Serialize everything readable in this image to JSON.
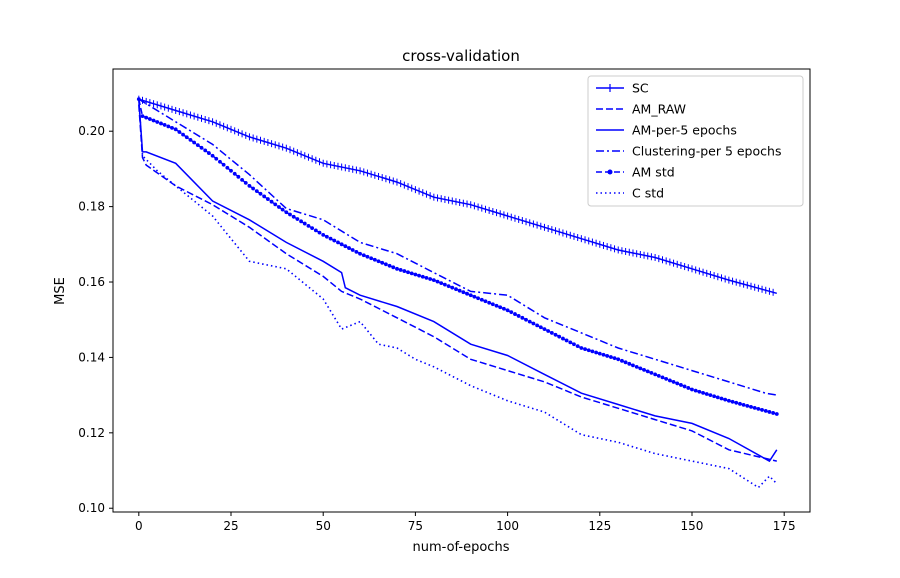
{
  "chart_data": {
    "type": "line",
    "title": "cross-validation",
    "xlabel": "num-of-epochs",
    "ylabel": "MSE",
    "xlim": [
      -7,
      182
    ],
    "ylim": [
      0.099,
      0.2165
    ],
    "xticks": [
      0,
      25,
      50,
      75,
      100,
      125,
      150,
      175
    ],
    "yticks": [
      0.1,
      0.12,
      0.14,
      0.16,
      0.18,
      0.2
    ],
    "xtick_labels": [
      "0",
      "25",
      "50",
      "75",
      "100",
      "125",
      "150",
      "175"
    ],
    "ytick_labels": [
      "0.10",
      "0.12",
      "0.14",
      "0.16",
      "0.18",
      "0.20"
    ],
    "grid": false,
    "legend_position": "top-right",
    "line_color": "#0000ff",
    "series": [
      {
        "name": "SC",
        "style": "solid-plus",
        "x": [
          0,
          10,
          20,
          30,
          40,
          50,
          60,
          70,
          80,
          90,
          100,
          110,
          120,
          130,
          140,
          150,
          160,
          173
        ],
        "y": [
          0.2085,
          0.2055,
          0.2025,
          0.1985,
          0.1955,
          0.1915,
          0.1895,
          0.1865,
          0.1825,
          0.1805,
          0.1775,
          0.1745,
          0.1715,
          0.1685,
          0.1665,
          0.1635,
          0.1605,
          0.157
        ]
      },
      {
        "name": "AM_RAW",
        "style": "dashed",
        "x": [
          0,
          1,
          2,
          10,
          20,
          30,
          40,
          50,
          55,
          60,
          70,
          80,
          90,
          100,
          110,
          120,
          130,
          140,
          150,
          160,
          173
        ],
        "y": [
          0.207,
          0.193,
          0.191,
          0.1855,
          0.1805,
          0.1745,
          0.1675,
          0.1615,
          0.1575,
          0.1555,
          0.1505,
          0.1455,
          0.1395,
          0.1365,
          0.1335,
          0.1295,
          0.1265,
          0.1235,
          0.1205,
          0.1155,
          0.1125
        ]
      },
      {
        "name": "AM-per-5 epochs",
        "style": "solid",
        "x": [
          0,
          1,
          2,
          10,
          20,
          30,
          40,
          50,
          55,
          56,
          60,
          70,
          80,
          90,
          100,
          110,
          120,
          130,
          140,
          150,
          160,
          171,
          173
        ],
        "y": [
          0.2085,
          0.1945,
          0.1945,
          0.1915,
          0.1815,
          0.1765,
          0.1705,
          0.1655,
          0.1625,
          0.1585,
          0.1565,
          0.1535,
          0.1495,
          0.1435,
          0.1405,
          0.1355,
          0.1305,
          0.1275,
          0.1245,
          0.1225,
          0.1185,
          0.1125,
          0.1155
        ]
      },
      {
        "name": "Clustering-per 5 epochs",
        "style": "dashdot",
        "x": [
          0,
          10,
          20,
          30,
          40,
          50,
          60,
          70,
          80,
          90,
          100,
          110,
          120,
          130,
          140,
          150,
          160,
          170,
          173
        ],
        "y": [
          0.2085,
          0.2025,
          0.1965,
          0.1885,
          0.1795,
          0.1765,
          0.1705,
          0.1675,
          0.1625,
          0.1575,
          0.1565,
          0.1505,
          0.1465,
          0.1425,
          0.1395,
          0.1365,
          0.1335,
          0.1305,
          0.13
        ]
      },
      {
        "name": "AM std",
        "style": "dashed-dot-marker",
        "x": [
          0,
          1,
          10,
          20,
          30,
          40,
          50,
          60,
          70,
          80,
          90,
          100,
          110,
          120,
          130,
          140,
          150,
          160,
          173
        ],
        "y": [
          0.2085,
          0.204,
          0.2005,
          0.1935,
          0.1855,
          0.1785,
          0.1725,
          0.1675,
          0.1635,
          0.1605,
          0.1565,
          0.1525,
          0.1475,
          0.1425,
          0.1395,
          0.1355,
          0.1315,
          0.1285,
          0.125
        ]
      },
      {
        "name": "C std",
        "style": "dotted",
        "x": [
          0,
          1,
          2,
          5,
          10,
          20,
          25,
          30,
          35,
          40,
          50,
          55,
          60,
          65,
          70,
          75,
          80,
          90,
          100,
          110,
          120,
          130,
          140,
          150,
          160,
          168,
          171,
          173
        ],
        "y": [
          0.2085,
          0.1935,
          0.1925,
          0.1895,
          0.1855,
          0.1775,
          0.1715,
          0.1655,
          0.1645,
          0.1635,
          0.1555,
          0.1475,
          0.1495,
          0.1435,
          0.1425,
          0.1395,
          0.1375,
          0.1325,
          0.1285,
          0.1255,
          0.1195,
          0.1175,
          0.1145,
          0.1125,
          0.1105,
          0.1055,
          0.1085,
          0.1065
        ]
      }
    ]
  }
}
